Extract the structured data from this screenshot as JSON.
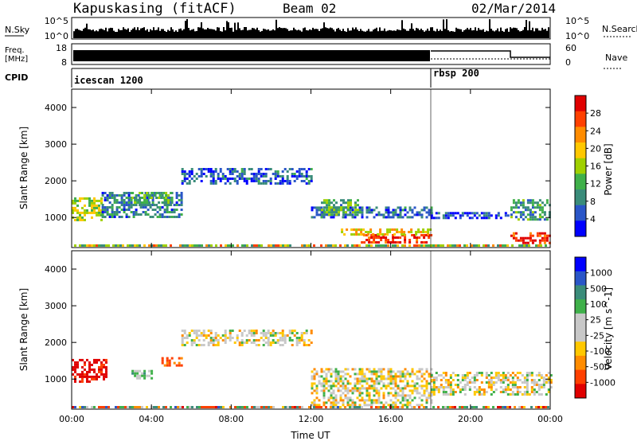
{
  "header": {
    "station": "Kapuskasing (fitACF)",
    "beam": "Beam 02",
    "date": "02/Mar/2014"
  },
  "noise_panel": {
    "left_label": "N.Sky",
    "right_label": "N.Search",
    "left_ticks": [
      "10^5",
      "10^0"
    ],
    "right_ticks": [
      "10^5",
      "10^0"
    ]
  },
  "freq_panel": {
    "left_label_line1": "Freq.",
    "left_label_line2": "[MHz]",
    "right_label": "Nave",
    "left_ticks": [
      "18",
      "8"
    ],
    "right_ticks": [
      "60",
      "0"
    ]
  },
  "cpid_panel": {
    "label": "CPID",
    "modes": [
      {
        "name": "icescan 1200",
        "start_hour": 0
      },
      {
        "name": "rbsp 200",
        "start_hour": 18
      }
    ]
  },
  "colors": {
    "power_scale": [
      "#0000ff",
      "#2a56c8",
      "#3a8c7a",
      "#3fb04a",
      "#a0d000",
      "#ffc800",
      "#ff8c00",
      "#ff4000",
      "#e00000"
    ],
    "velocity_scale": [
      "#0000ff",
      "#2a56c8",
      "#3a8c7a",
      "#3fb04a",
      "#c8c8c8",
      "#c8c8c8",
      "#ffc800",
      "#ff8c00",
      "#ff4000",
      "#e00000"
    ]
  },
  "chart_data": [
    {
      "type": "heatmap",
      "title": "Power",
      "xlabel": "",
      "ylabel": "Slant Range [km]",
      "xlim": [
        0,
        24
      ],
      "ylim": [
        180,
        4500
      ],
      "yticks": [
        "1000",
        "2000",
        "3000",
        "4000"
      ],
      "colorbar_label": "Power [dB]",
      "colorbar_ticks": [
        "4",
        "8",
        "12",
        "16",
        "20",
        "24",
        "28"
      ],
      "colorbar_range": [
        0,
        32
      ],
      "regions": [
        {
          "t0": 0.0,
          "t1": 1.5,
          "r0": 900,
          "r1": 1550,
          "value": 16
        },
        {
          "t0": 1.5,
          "t1": 5.5,
          "r0": 1000,
          "r1": 1700,
          "value": 8
        },
        {
          "t0": 3.0,
          "t1": 5.0,
          "r0": 1350,
          "r1": 1700,
          "value": 12
        },
        {
          "t0": 5.5,
          "t1": 12.0,
          "r0": 1900,
          "r1": 2350,
          "value": 6
        },
        {
          "t0": 12.0,
          "t1": 18.0,
          "r0": 980,
          "r1": 1300,
          "value": 6
        },
        {
          "t0": 12.5,
          "t1": 14.5,
          "r0": 1100,
          "r1": 1500,
          "value": 12
        },
        {
          "t0": 14.5,
          "t1": 18.0,
          "r0": 300,
          "r1": 550,
          "value": 28
        },
        {
          "t0": 13.5,
          "t1": 18.0,
          "r0": 550,
          "r1": 700,
          "value": 20
        },
        {
          "t0": 18.0,
          "t1": 22.0,
          "r0": 1000,
          "r1": 1150,
          "value": 4
        },
        {
          "t0": 22.0,
          "t1": 24.0,
          "r0": 950,
          "r1": 1500,
          "value": 10
        },
        {
          "t0": 22.0,
          "t1": 24.0,
          "r0": 300,
          "r1": 600,
          "value": 28
        }
      ]
    },
    {
      "type": "heatmap",
      "title": "Velocity",
      "xlabel": "Time UT",
      "ylabel": "Slant Range [km]",
      "xlim": [
        0,
        24
      ],
      "ylim": [
        180,
        4500
      ],
      "xticks": [
        "00:00",
        "04:00",
        "08:00",
        "12:00",
        "16:00",
        "20:00",
        "00:00"
      ],
      "yticks": [
        "1000",
        "2000",
        "3000",
        "4000"
      ],
      "colorbar_label": "Velocity [m s^-1]",
      "colorbar_ticks": [
        "1000",
        "500",
        "100",
        "25",
        "-25",
        "-100",
        "-500",
        "-1000"
      ],
      "regions": [
        {
          "t0": 0.0,
          "t1": 1.7,
          "r0": 900,
          "r1": 1550,
          "value": -600
        },
        {
          "t0": 3.0,
          "t1": 4.0,
          "r0": 1000,
          "r1": 1250,
          "value": 150
        },
        {
          "t0": 4.5,
          "t1": 5.5,
          "r0": 1350,
          "r1": 1600,
          "value": -300
        },
        {
          "t0": 5.5,
          "t1": 12.0,
          "r0": 1900,
          "r1": 2350,
          "value": 0
        },
        {
          "t0": 12.0,
          "t1": 18.0,
          "r0": 300,
          "r1": 1300,
          "value": 0
        },
        {
          "t0": 18.0,
          "t1": 24.0,
          "r0": 600,
          "r1": 1200,
          "value": 0
        }
      ]
    }
  ]
}
